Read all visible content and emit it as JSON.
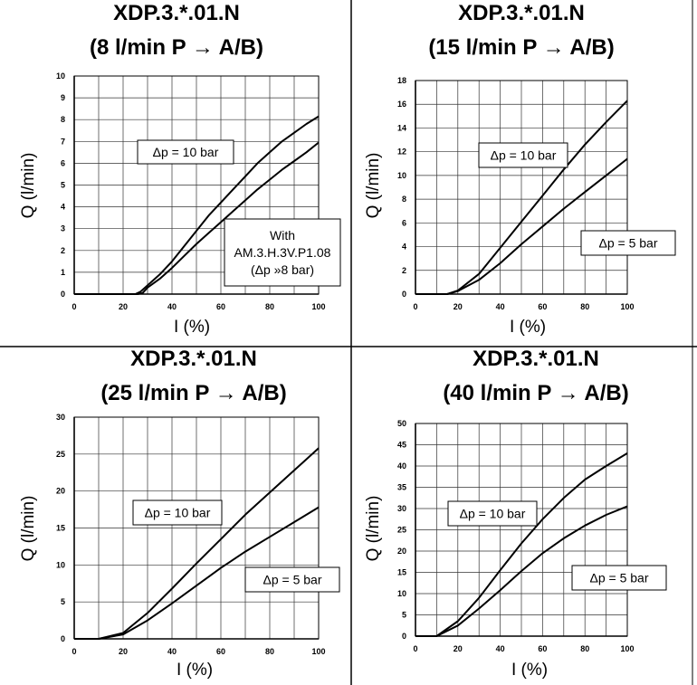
{
  "chart_data": [
    {
      "type": "line",
      "title": "XDP.3.*.01.N",
      "subtitle": "(8 l/min P → A/B)",
      "xlabel": "I (%)",
      "ylabel": "Q (l/min)",
      "xlim": [
        0,
        100
      ],
      "ylim": [
        0,
        10
      ],
      "xticks": [
        0,
        20,
        40,
        60,
        80,
        100
      ],
      "yticks": [
        0,
        1,
        2,
        3,
        4,
        5,
        6,
        7,
        8,
        9,
        10
      ],
      "grid": true,
      "series": [
        {
          "label": "Δp = 10 bar",
          "x": [
            0,
            25,
            27,
            30,
            35,
            40,
            45,
            50,
            55,
            60,
            65,
            70,
            75,
            80,
            85,
            90,
            95,
            100
          ],
          "y": [
            0,
            0,
            0.1,
            0.4,
            0.9,
            1.5,
            2.2,
            2.9,
            3.6,
            4.2,
            4.8,
            5.4,
            6.0,
            6.5,
            7.0,
            7.4,
            7.8,
            8.15
          ]
        },
        {
          "x": [
            0,
            26,
            28,
            30,
            35,
            40,
            45,
            50,
            55,
            60,
            65,
            70,
            75,
            80,
            85,
            90,
            95,
            100
          ],
          "y": [
            0,
            0,
            0.05,
            0.3,
            0.7,
            1.2,
            1.75,
            2.3,
            2.8,
            3.3,
            3.8,
            4.3,
            4.8,
            5.25,
            5.7,
            6.1,
            6.5,
            6.95
          ]
        }
      ],
      "annotations": [
        {
          "lines": [
            "Δp = 10 bar"
          ]
        },
        {
          "lines": [
            "With",
            "AM.3.H.3V.P1.08",
            "(Δp »8 bar)"
          ]
        }
      ]
    },
    {
      "type": "line",
      "title": "XDP.3.*.01.N",
      "subtitle": "(15 l/min P → A/B)",
      "xlabel": "I (%)",
      "ylabel": "Q (l/min)",
      "xlim": [
        0,
        100
      ],
      "ylim": [
        0,
        18
      ],
      "xticks": [
        0,
        20,
        40,
        60,
        80,
        100
      ],
      "yticks": [
        0,
        2,
        4,
        6,
        8,
        10,
        12,
        14,
        16,
        18
      ],
      "grid": true,
      "series": [
        {
          "label": "Δp = 10 bar",
          "x": [
            0,
            15,
            20,
            30,
            40,
            50,
            60,
            70,
            80,
            90,
            100
          ],
          "y": [
            0,
            0,
            0.3,
            1.7,
            3.9,
            6.1,
            8.3,
            10.5,
            12.6,
            14.5,
            16.3
          ]
        },
        {
          "label": "Δp = 5 bar",
          "x": [
            0,
            15,
            20,
            30,
            40,
            50,
            60,
            70,
            80,
            90,
            100
          ],
          "y": [
            0,
            0,
            0.25,
            1.2,
            2.6,
            4.2,
            5.7,
            7.2,
            8.6,
            10.0,
            11.4
          ]
        }
      ],
      "annotations": [
        {
          "lines": [
            "Δp = 10 bar"
          ]
        },
        {
          "lines": [
            "Δp = 5 bar"
          ]
        }
      ]
    },
    {
      "type": "line",
      "title": "XDP.3.*.01.N",
      "subtitle": "(25 l/min P → A/B)",
      "xlabel": "I (%)",
      "ylabel": "Q (l/min)",
      "xlim": [
        0,
        100
      ],
      "ylim": [
        0,
        30
      ],
      "xticks": [
        0,
        20,
        40,
        60,
        80,
        100
      ],
      "yticks": [
        0,
        5,
        10,
        15,
        20,
        25,
        30
      ],
      "grid": true,
      "series": [
        {
          "label": "Δp = 10 bar",
          "x": [
            0,
            10,
            20,
            30,
            40,
            50,
            60,
            70,
            80,
            90,
            100
          ],
          "y": [
            0,
            0,
            0.8,
            3.5,
            6.8,
            10.2,
            13.5,
            16.8,
            19.8,
            22.8,
            25.8
          ]
        },
        {
          "label": "Δp = 5 bar",
          "x": [
            0,
            10,
            20,
            30,
            40,
            50,
            60,
            70,
            80,
            90,
            100
          ],
          "y": [
            0,
            0,
            0.6,
            2.5,
            4.8,
            7.2,
            9.6,
            11.8,
            13.8,
            15.8,
            17.8
          ]
        }
      ],
      "annotations": [
        {
          "lines": [
            "Δp = 10 bar"
          ]
        },
        {
          "lines": [
            "Δp = 5 bar"
          ]
        }
      ]
    },
    {
      "type": "line",
      "title": "XDP.3.*.01.N",
      "subtitle": "(40 l/min P → A/B)",
      "xlabel": "I (%)",
      "ylabel": "Q (l/min)",
      "xlim": [
        0,
        100
      ],
      "ylim": [
        0,
        50
      ],
      "xticks": [
        0,
        20,
        40,
        60,
        80,
        100
      ],
      "yticks": [
        0,
        5,
        10,
        15,
        20,
        25,
        30,
        35,
        40,
        45,
        50
      ],
      "grid": true,
      "series": [
        {
          "label": "Δp = 10 bar",
          "x": [
            0,
            10,
            20,
            30,
            40,
            50,
            60,
            70,
            80,
            90,
            100
          ],
          "y": [
            0,
            0,
            3.5,
            9.0,
            15.5,
            21.8,
            27.5,
            32.5,
            36.8,
            40.0,
            43.0
          ]
        },
        {
          "label": "Δp = 5 bar",
          "x": [
            0,
            10,
            20,
            30,
            40,
            50,
            60,
            70,
            80,
            90,
            100
          ],
          "y": [
            0,
            0,
            2.5,
            6.5,
            10.8,
            15.3,
            19.5,
            23.0,
            26.0,
            28.5,
            30.5
          ]
        }
      ],
      "annotations": [
        {
          "lines": [
            "Δp = 10 bar"
          ]
        },
        {
          "lines": [
            "Δp = 5 bar"
          ]
        }
      ]
    }
  ]
}
